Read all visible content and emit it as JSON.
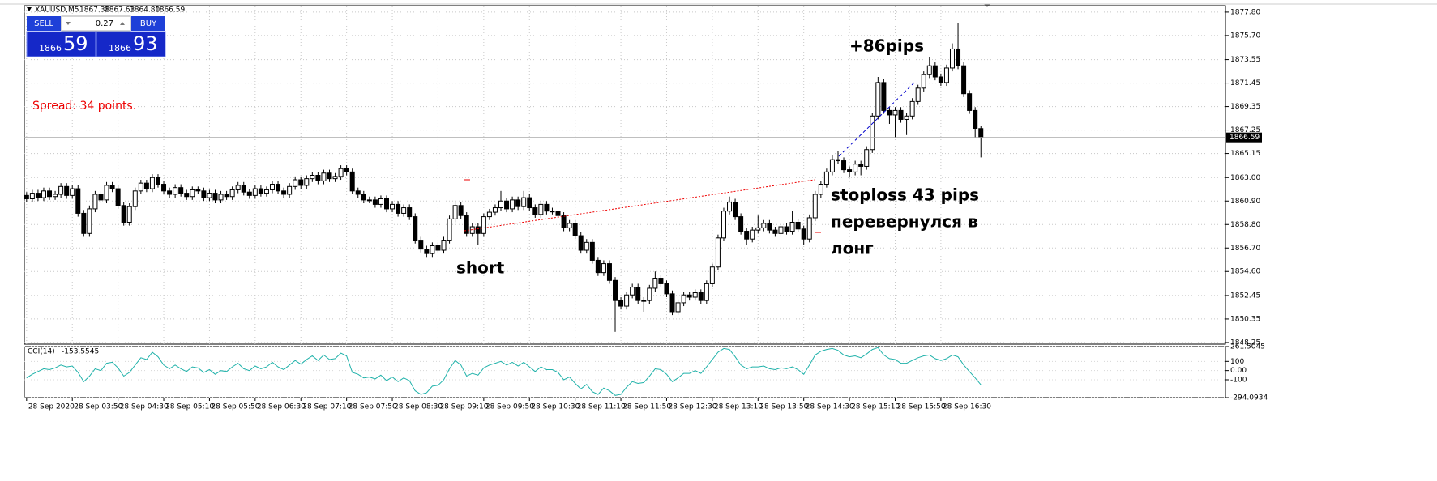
{
  "header": {
    "symbol": "XAUUSD,M5",
    "ohlc": [
      "1867.38",
      "1867.63",
      "1864.80",
      "1866.59"
    ]
  },
  "trade_panel": {
    "sell": "SELL",
    "buy": "BUY",
    "volume": "0.27",
    "bid_big": "1866",
    "bid_small": "59",
    "ask_big": "1866",
    "ask_small": "93"
  },
  "spread_text": "Spread: 34 points.",
  "chart_data": [
    {
      "type": "candlestick",
      "open": [
        1861.4,
        1861.1,
        1861.6,
        1861.2,
        1861.8,
        1861.3,
        1861.5,
        1862.2,
        1861.4,
        1862.0,
        1859.8,
        1858.0,
        1860.2,
        1861.5,
        1861.0,
        1862.3,
        1862.0,
        1860.5,
        1859.0,
        1860.4,
        1861.8,
        1862.5,
        1862.0,
        1863.0,
        1862.4,
        1861.8,
        1861.5,
        1862.1,
        1861.6,
        1861.3,
        1861.9,
        1861.8,
        1861.2,
        1861.6,
        1861.0,
        1861.5,
        1861.3,
        1861.9,
        1862.3,
        1861.7,
        1861.4,
        1862.0,
        1861.6,
        1861.9,
        1862.4,
        1861.8,
        1861.5,
        1862.2,
        1862.8,
        1862.3,
        1862.9,
        1863.2,
        1862.7,
        1863.4,
        1862.9,
        1863.1,
        1863.8,
        1863.5,
        1861.8,
        1861.5,
        1861.0,
        1861.0,
        1860.6,
        1861.1,
        1860.2,
        1860.6,
        1859.8,
        1860.3,
        1859.5,
        1857.4,
        1856.6,
        1856.2,
        1856.9,
        1856.5,
        1857.4,
        1859.3,
        1860.5,
        1859.6,
        1858.0,
        1858.6,
        1858.0,
        1859.5,
        1859.9,
        1860.3,
        1860.9,
        1860.2,
        1861.0,
        1860.4,
        1861.2,
        1860.3,
        1859.7,
        1860.6,
        1860.0,
        1860.0,
        1859.6,
        1858.5,
        1858.9,
        1857.8,
        1856.5,
        1857.2,
        1855.6,
        1854.5,
        1855.3,
        1853.8,
        1852.0,
        1851.5,
        1852.5,
        1853.2,
        1852.0,
        1852.0,
        1853.1,
        1854.0,
        1853.5,
        1852.6,
        1851.0,
        1851.8,
        1852.5,
        1852.3,
        1852.7,
        1852.0,
        1853.5,
        1855.0,
        1857.6,
        1860.0,
        1860.8,
        1859.5,
        1858.2,
        1857.5,
        1858.3,
        1858.5,
        1858.9,
        1858.3,
        1858.0,
        1858.6,
        1858.2,
        1859.0,
        1858.4,
        1857.5,
        1859.4,
        1861.5,
        1862.4,
        1863.5,
        1864.6,
        1864.5,
        1863.7,
        1863.5,
        1864.2,
        1864.0,
        1865.5,
        1868.5,
        1871.5,
        1869.0,
        1868.6,
        1869.0,
        1868.2,
        1868.5,
        1869.8,
        1871.0,
        1872.2,
        1873.0,
        1872.0,
        1871.5,
        1872.8,
        1874.5,
        1873.0,
        1870.5,
        1869.0,
        1867.38
      ],
      "high": [
        1861.7,
        1861.9,
        1861.9,
        1862.1,
        1862.1,
        1861.8,
        1862.5,
        1862.5,
        1862.3,
        1862.3,
        1860.1,
        1860.5,
        1861.8,
        1861.8,
        1862.6,
        1862.6,
        1862.3,
        1860.8,
        1860.7,
        1862.1,
        1862.8,
        1862.8,
        1863.3,
        1863.3,
        1862.7,
        1862.1,
        1862.4,
        1862.4,
        1861.9,
        1862.2,
        1862.2,
        1862.1,
        1861.9,
        1861.9,
        1861.8,
        1861.8,
        1862.2,
        1862.6,
        1862.6,
        1862.0,
        1862.3,
        1862.3,
        1862.2,
        1862.7,
        1862.7,
        1862.1,
        1862.5,
        1863.1,
        1863.1,
        1863.2,
        1863.5,
        1863.5,
        1863.7,
        1863.7,
        1863.4,
        1864.1,
        1864.1,
        1863.8,
        1862.1,
        1861.8,
        1861.3,
        1861.3,
        1861.4,
        1861.4,
        1860.9,
        1860.9,
        1860.6,
        1860.6,
        1859.8,
        1857.7,
        1856.9,
        1857.2,
        1857.2,
        1857.7,
        1859.6,
        1860.8,
        1860.8,
        1859.9,
        1858.9,
        1858.9,
        1859.8,
        1860.2,
        1860.6,
        1861.8,
        1861.2,
        1861.3,
        1861.3,
        1861.8,
        1861.5,
        1860.6,
        1860.9,
        1860.9,
        1860.3,
        1860.3,
        1859.9,
        1859.2,
        1859.2,
        1858.1,
        1857.5,
        1857.5,
        1855.9,
        1855.6,
        1855.6,
        1854.1,
        1852.3,
        1852.8,
        1853.5,
        1853.5,
        1852.3,
        1853.4,
        1854.6,
        1854.3,
        1853.8,
        1852.9,
        1852.1,
        1852.8,
        1852.8,
        1853.0,
        1853.0,
        1853.8,
        1855.3,
        1857.9,
        1860.3,
        1861.3,
        1861.1,
        1859.8,
        1858.5,
        1858.6,
        1859.6,
        1859.2,
        1859.2,
        1858.6,
        1858.9,
        1858.9,
        1860.0,
        1859.3,
        1858.7,
        1859.7,
        1861.8,
        1862.7,
        1863.8,
        1865.0,
        1865.4,
        1864.8,
        1864.0,
        1864.5,
        1864.5,
        1865.8,
        1868.8,
        1872.0,
        1871.8,
        1869.3,
        1869.3,
        1869.3,
        1868.8,
        1870.1,
        1871.3,
        1872.5,
        1873.8,
        1873.3,
        1872.3,
        1873.1,
        1875.0,
        1876.8,
        1873.3,
        1870.8,
        1869.3,
        1867.63
      ],
      "low": [
        1860.8,
        1860.8,
        1860.9,
        1860.9,
        1861.0,
        1861.0,
        1861.2,
        1861.1,
        1861.1,
        1859.5,
        1857.7,
        1857.7,
        1859.9,
        1860.7,
        1860.7,
        1861.7,
        1860.2,
        1858.7,
        1858.7,
        1860.1,
        1861.5,
        1861.7,
        1861.7,
        1862.1,
        1861.5,
        1861.2,
        1861.2,
        1861.3,
        1861.0,
        1861.0,
        1861.5,
        1860.9,
        1860.9,
        1860.7,
        1860.7,
        1861.0,
        1861.0,
        1861.6,
        1861.4,
        1861.1,
        1861.1,
        1861.3,
        1861.3,
        1861.6,
        1861.5,
        1861.2,
        1861.2,
        1861.9,
        1862.0,
        1862.0,
        1862.6,
        1862.4,
        1862.4,
        1862.6,
        1862.6,
        1862.8,
        1863.2,
        1861.5,
        1861.2,
        1860.7,
        1860.7,
        1860.3,
        1860.3,
        1859.9,
        1859.9,
        1859.5,
        1859.5,
        1859.2,
        1857.1,
        1856.3,
        1855.9,
        1855.9,
        1856.2,
        1856.2,
        1857.1,
        1859.0,
        1859.3,
        1857.7,
        1857.7,
        1857.0,
        1857.7,
        1859.2,
        1859.6,
        1860.0,
        1859.9,
        1859.9,
        1860.1,
        1860.1,
        1860.0,
        1859.4,
        1859.4,
        1859.7,
        1859.7,
        1859.3,
        1858.2,
        1858.2,
        1857.5,
        1856.2,
        1856.2,
        1855.3,
        1854.2,
        1854.2,
        1853.5,
        1849.2,
        1851.2,
        1851.2,
        1852.2,
        1851.7,
        1851.0,
        1851.7,
        1852.8,
        1853.2,
        1852.3,
        1850.7,
        1850.7,
        1851.5,
        1852.0,
        1852.0,
        1851.7,
        1851.7,
        1853.2,
        1854.7,
        1857.3,
        1859.7,
        1859.2,
        1857.9,
        1857.0,
        1857.2,
        1858.0,
        1858.2,
        1858.0,
        1857.7,
        1857.7,
        1857.9,
        1857.9,
        1858.1,
        1857.0,
        1857.2,
        1859.1,
        1861.2,
        1862.1,
        1863.2,
        1864.2,
        1863.4,
        1863.0,
        1863.2,
        1863.2,
        1863.7,
        1865.2,
        1868.2,
        1868.7,
        1867.8,
        1866.6,
        1867.9,
        1866.8,
        1868.2,
        1869.5,
        1870.7,
        1871.9,
        1871.7,
        1871.2,
        1871.2,
        1872.5,
        1872.7,
        1870.2,
        1868.7,
        1866.5,
        1864.8
      ],
      "close": [
        1861.1,
        1861.6,
        1861.2,
        1861.8,
        1861.3,
        1861.5,
        1862.2,
        1861.4,
        1862.0,
        1859.8,
        1858.0,
        1860.2,
        1861.5,
        1861.0,
        1862.3,
        1862.0,
        1860.5,
        1859.0,
        1860.4,
        1861.8,
        1862.5,
        1862.0,
        1863.0,
        1862.4,
        1861.8,
        1861.5,
        1862.1,
        1861.6,
        1861.3,
        1861.9,
        1861.8,
        1861.2,
        1861.6,
        1861.0,
        1861.5,
        1861.3,
        1861.9,
        1862.3,
        1861.7,
        1861.4,
        1862.0,
        1861.6,
        1861.9,
        1862.4,
        1861.8,
        1861.5,
        1862.2,
        1862.8,
        1862.3,
        1862.9,
        1863.2,
        1862.7,
        1863.4,
        1862.9,
        1863.1,
        1863.8,
        1863.5,
        1861.8,
        1861.5,
        1861.0,
        1861.0,
        1860.6,
        1861.1,
        1860.2,
        1860.6,
        1859.8,
        1860.3,
        1859.5,
        1857.4,
        1856.6,
        1856.2,
        1856.9,
        1856.5,
        1857.4,
        1859.3,
        1860.5,
        1859.6,
        1858.0,
        1858.6,
        1858.0,
        1859.5,
        1859.9,
        1860.3,
        1860.9,
        1860.2,
        1861.0,
        1860.4,
        1861.2,
        1860.3,
        1859.7,
        1860.6,
        1860.0,
        1860.0,
        1859.6,
        1858.5,
        1858.9,
        1857.8,
        1856.5,
        1857.2,
        1855.6,
        1854.5,
        1855.3,
        1853.8,
        1852.0,
        1851.5,
        1852.5,
        1853.2,
        1852.0,
        1852.0,
        1853.1,
        1854.0,
        1853.5,
        1852.6,
        1851.0,
        1851.8,
        1852.5,
        1852.3,
        1852.7,
        1852.0,
        1853.5,
        1855.0,
        1857.6,
        1860.0,
        1860.8,
        1859.5,
        1858.2,
        1857.5,
        1858.3,
        1858.5,
        1858.9,
        1858.3,
        1858.0,
        1858.6,
        1858.2,
        1859.0,
        1858.4,
        1857.5,
        1859.4,
        1861.5,
        1862.4,
        1863.5,
        1864.6,
        1864.5,
        1863.7,
        1863.5,
        1864.2,
        1864.0,
        1865.5,
        1868.5,
        1871.5,
        1869.0,
        1868.6,
        1869.0,
        1868.2,
        1868.5,
        1869.8,
        1871.0,
        1872.2,
        1873.0,
        1872.0,
        1871.5,
        1872.8,
        1874.5,
        1873.0,
        1870.5,
        1869.0,
        1867.4,
        1866.59
      ],
      "ylim": [
        1848.1,
        1878.3
      ],
      "yticks": [
        {
          "value": 1877.8,
          "label": "1877.80"
        },
        {
          "value": 1875.7,
          "label": "1875.70"
        },
        1873.55,
        1871.45,
        1869.35,
        1867.25,
        1865.15,
        {
          "value": 1863,
          "label": "1863.00"
        },
        {
          "value": 1860.9,
          "label": "1860.90"
        },
        {
          "value": 1858.8,
          "label": "1858.80"
        },
        {
          "value": 1856.7,
          "label": "1856.70"
        },
        {
          "value": 1854.6,
          "label": "1854.60"
        },
        1852.45,
        1850.35,
        1848.25
      ],
      "xlim": [
        -0.4,
        209.8
      ],
      "xticks": [
        {
          "value": 0,
          "label": "28 Sep 2020"
        },
        {
          "value": 8,
          "label": "28 Sep 03:50"
        },
        {
          "value": 16,
          "label": "28 Sep 04:30"
        },
        {
          "value": 24,
          "label": "28 Sep 05:10"
        },
        {
          "value": 32,
          "label": "28 Sep 05:50"
        },
        {
          "value": 40,
          "label": "28 Sep 06:30"
        },
        {
          "value": 48,
          "label": "28 Sep 07:10"
        },
        {
          "value": 56,
          "label": "28 Sep 07:50"
        },
        {
          "value": 64,
          "label": "28 Sep 08:30"
        },
        {
          "value": 72,
          "label": "28 Sep 09:10"
        },
        {
          "value": 80,
          "label": "28 Sep 09:50"
        },
        {
          "value": 88,
          "label": "28 Sep 10:30"
        },
        {
          "value": 96,
          "label": "28 Sep 11:10"
        },
        {
          "value": 104,
          "label": "28 Sep 11:50"
        },
        {
          "value": 112,
          "label": "28 Sep 12:30"
        },
        {
          "value": 120,
          "label": "28 Sep 13:10"
        },
        {
          "value": 128,
          "label": "28 Sep 13:50"
        },
        {
          "value": 136,
          "label": "28 Sep 14:30"
        },
        {
          "value": 144,
          "label": "28 Sep 15:10"
        },
        {
          "value": 152,
          "label": "28 Sep 15:50"
        },
        {
          "value": 160,
          "label": "28 Sep 16:30"
        }
      ],
      "grid": true,
      "up_color": "#ffffff",
      "down_color": "#000000",
      "annotations": [
        "+86pips",
        "short",
        "stoploss 43 pips",
        "перевернулся в",
        "лонг"
      ]
    },
    {
      "type": "line",
      "title": "CCI(14)",
      "color": "#20b2aa",
      "values": [
        -80,
        -40,
        -10,
        20,
        10,
        30,
        60,
        40,
        50,
        -20,
        -120,
        -60,
        20,
        0,
        80,
        90,
        30,
        -60,
        -20,
        60,
        140,
        120,
        200,
        150,
        60,
        20,
        60,
        20,
        -10,
        40,
        30,
        -20,
        10,
        -40,
        0,
        -10,
        40,
        80,
        20,
        0,
        50,
        20,
        40,
        90,
        40,
        10,
        60,
        110,
        70,
        120,
        160,
        110,
        170,
        120,
        130,
        190,
        160,
        -20,
        -40,
        -80,
        -70,
        -90,
        -50,
        -110,
        -70,
        -120,
        -80,
        -110,
        -220,
        -260,
        -240,
        -170,
        -160,
        -100,
        20,
        110,
        60,
        -60,
        -30,
        -50,
        30,
        60,
        80,
        100,
        60,
        90,
        50,
        90,
        40,
        -10,
        40,
        10,
        10,
        -20,
        -100,
        -70,
        -140,
        -200,
        -150,
        -230,
        -260,
        -190,
        -220,
        -270,
        -260,
        -180,
        -120,
        -140,
        -130,
        -60,
        20,
        10,
        -40,
        -120,
        -80,
        -30,
        -30,
        0,
        -30,
        40,
        120,
        200,
        240,
        230,
        150,
        60,
        20,
        40,
        40,
        50,
        20,
        10,
        30,
        20,
        40,
        10,
        -40,
        60,
        170,
        210,
        230,
        240,
        220,
        170,
        150,
        160,
        140,
        180,
        230,
        250,
        170,
        130,
        120,
        80,
        80,
        110,
        140,
        160,
        170,
        130,
        110,
        130,
        170,
        150,
        60,
        -10,
        -80,
        -153.5545
      ],
      "ylim": [
        -294.0934,
        261.5045
      ],
      "yticks": [
        261.5045,
        100,
        {
          "value": 0,
          "label": "0.00"
        },
        -100,
        -294.0934
      ]
    }
  ]
}
